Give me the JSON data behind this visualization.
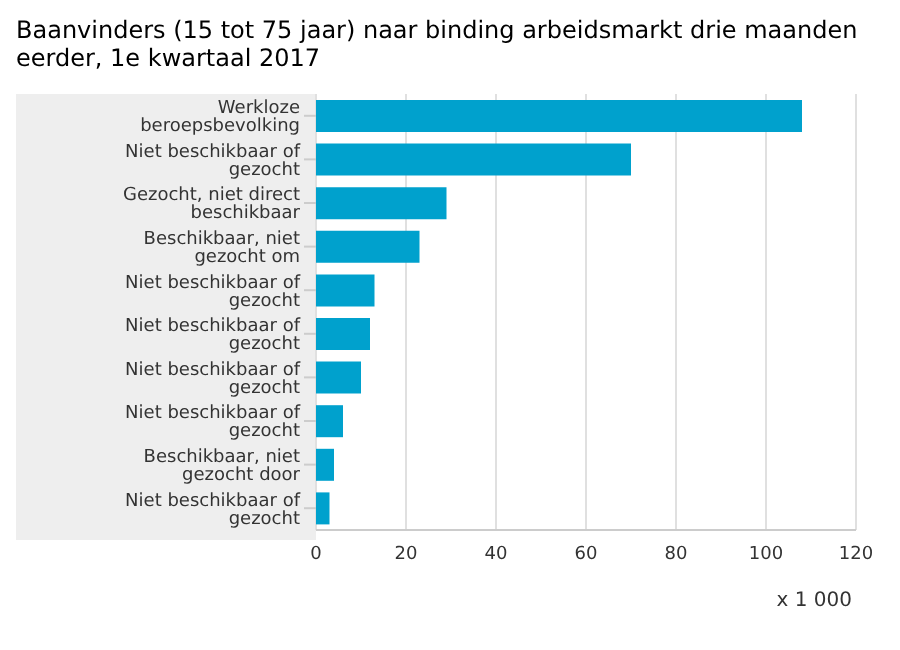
{
  "chart_data": {
    "type": "bar",
    "orientation": "horizontal",
    "title": "Baanvinders (15 tot 75 jaar) naar binding arbeidsmarkt drie maanden eerder, 1e kwartaal 2017",
    "xlabel": "x 1 000",
    "categories": [
      "Werkloze beroepsbevolking",
      "Niet beschikbaar of gezocht",
      "Gezocht, niet direct beschikbaar",
      "Beschikbaar, niet gezocht om",
      "Niet beschikbaar of gezocht",
      "Niet beschikbaar of gezocht",
      "Niet beschikbaar of gezocht",
      "Niet beschikbaar of gezocht",
      "Beschikbaar, niet gezocht door",
      "Niet beschikbaar of gezocht"
    ],
    "values": [
      108,
      70,
      29,
      23,
      13,
      12,
      10,
      6,
      4,
      3
    ],
    "color": "#00a1cd",
    "xlim": [
      0,
      120
    ],
    "xticks": [
      0,
      20,
      40,
      60,
      80,
      100,
      120
    ],
    "grid": "x"
  }
}
